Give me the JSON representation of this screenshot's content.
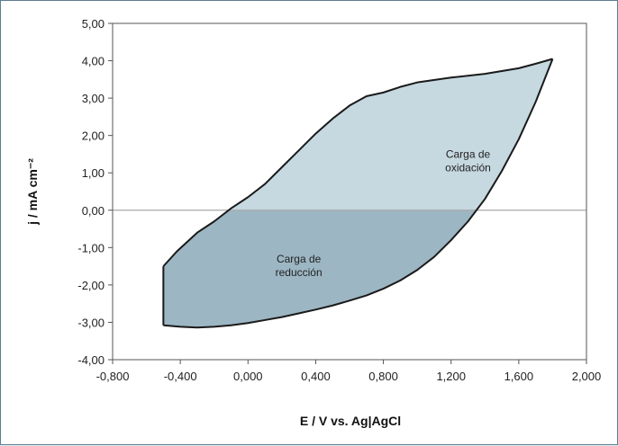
{
  "chart_data": {
    "type": "area",
    "title": "",
    "xlabel": "E / V vs. Ag|AgCl",
    "ylabel": "j / mA cm⁻²",
    "xlim": [
      -0.8,
      2.0
    ],
    "ylim": [
      -4.0,
      5.0
    ],
    "x_ticks": [
      -0.8,
      -0.4,
      0.0,
      0.4,
      0.8,
      1.2,
      1.6,
      2.0
    ],
    "x_tick_labels": [
      "-0,800",
      "-0,400",
      "0,000",
      "0,400",
      "0,800",
      "1,200",
      "1,600",
      "2,000"
    ],
    "y_ticks": [
      5,
      4,
      3,
      2,
      1,
      0,
      -1,
      -2,
      -3,
      -4
    ],
    "y_tick_labels": [
      "5,00",
      "4,00",
      "3,00",
      "2,00",
      "1,00",
      "0,00",
      "-1,00",
      "-2,00",
      "-3,00",
      "-4,00"
    ],
    "grid": false,
    "zero_line": true,
    "colors": {
      "oxidation_fill": "#c6d8e0",
      "reduction_fill": "#9cb6c3",
      "outline": "#1a1a1a",
      "zero_line": "#aaaaaa"
    },
    "series": [
      {
        "x": [
          -0.5,
          -0.42,
          -0.3,
          -0.2,
          -0.1,
          0.0,
          0.1,
          0.2,
          0.3,
          0.4,
          0.5,
          0.6,
          0.7,
          0.8,
          0.9,
          1.0,
          1.2,
          1.4,
          1.6,
          1.7,
          1.8
        ],
        "y": [
          -1.5,
          -1.1,
          -0.6,
          -0.3,
          0.05,
          0.35,
          0.7,
          1.15,
          1.6,
          2.05,
          2.45,
          2.8,
          3.05,
          3.15,
          3.3,
          3.42,
          3.55,
          3.65,
          3.8,
          3.92,
          4.05
        ]
      },
      {
        "x": [
          1.8,
          1.7,
          1.6,
          1.5,
          1.4,
          1.3,
          1.2,
          1.1,
          1.0,
          0.9,
          0.8,
          0.7,
          0.6,
          0.5,
          0.4,
          0.3,
          0.2,
          0.1,
          0.0,
          -0.1,
          -0.2,
          -0.3,
          -0.4,
          -0.5
        ],
        "y": [
          4.05,
          2.9,
          1.9,
          1.05,
          0.3,
          -0.3,
          -0.8,
          -1.25,
          -1.6,
          -1.88,
          -2.1,
          -2.28,
          -2.42,
          -2.55,
          -2.66,
          -2.76,
          -2.86,
          -2.94,
          -3.02,
          -3.08,
          -3.12,
          -3.14,
          -3.12,
          -3.08
        ]
      }
    ],
    "annotations": [
      {
        "lines": [
          "Carga de",
          "oxidación"
        ],
        "x": 1.3,
        "y": 1.4
      },
      {
        "lines": [
          "Carga de",
          "reducción"
        ],
        "x": 0.3,
        "y": -1.4
      }
    ]
  }
}
